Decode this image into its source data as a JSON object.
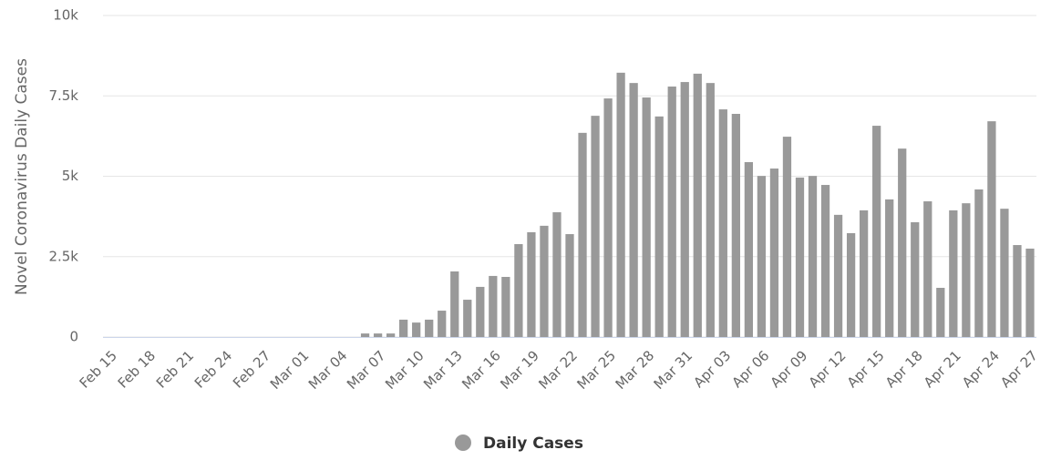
{
  "chart_data": {
    "type": "bar",
    "y_axis_label": "Novel Coronavirus Daily Cases",
    "categories": [
      "Feb 15",
      null,
      null,
      "Feb 18",
      null,
      null,
      "Feb 21",
      null,
      null,
      "Feb 24",
      null,
      null,
      "Feb 27",
      null,
      null,
      "Mar 01",
      null,
      null,
      "Mar 04",
      null,
      null,
      "Mar 07",
      null,
      null,
      "Mar 10",
      null,
      null,
      "Mar 13",
      null,
      null,
      "Mar 16",
      null,
      null,
      "Mar 19",
      null,
      null,
      "Mar 22",
      null,
      null,
      "Mar 25",
      null,
      null,
      "Mar 28",
      null,
      null,
      "Mar 31",
      null,
      null,
      "Apr 03",
      null,
      null,
      "Apr 06",
      null,
      null,
      "Apr 09",
      null,
      null,
      "Apr 12",
      null,
      null,
      "Apr 15",
      null,
      null,
      "Apr 18",
      null,
      null,
      "Apr 21",
      null,
      null,
      "Apr 24",
      null,
      null,
      "Apr 27"
    ],
    "series": [
      {
        "name": "Daily Cases",
        "color": "#999999",
        "values": [
          0,
          0,
          0,
          0,
          0,
          0,
          0,
          0,
          0,
          0,
          0,
          0,
          0,
          0,
          0,
          0,
          0,
          0,
          0,
          0,
          110,
          110,
          110,
          540,
          450,
          540,
          820,
          2040,
          1160,
          1560,
          1900,
          1870,
          2890,
          3260,
          3460,
          3880,
          3200,
          6350,
          6880,
          7420,
          8220,
          7900,
          7450,
          6860,
          7790,
          7930,
          8190,
          7900,
          7080,
          6940,
          5440,
          5010,
          5240,
          6230,
          4960,
          5010,
          4730,
          3800,
          3230,
          3940,
          6570,
          4280,
          5860,
          3570,
          4220,
          1530,
          3940,
          4160,
          4590,
          6710,
          3990,
          2860,
          2750
        ]
      }
    ],
    "ylim": [
      0,
      10000
    ],
    "yticks": [
      0,
      {
        "value": 2500,
        "label": "2.5k"
      },
      {
        "value": 5000,
        "label": "5k"
      },
      {
        "value": 7500,
        "label": "7.5k"
      },
      {
        "value": 10000,
        "label": "10k"
      }
    ],
    "grid": true,
    "legend": "bottom"
  }
}
